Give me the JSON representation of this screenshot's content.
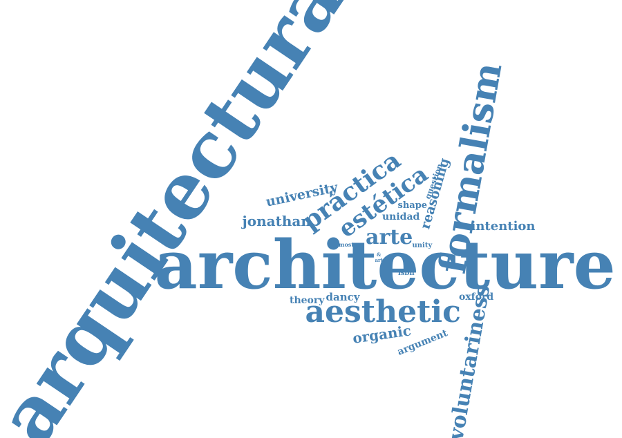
{
  "colors": {
    "text": "#4682b4",
    "background": "#ffffff"
  },
  "words": [
    "arquitectura",
    "architecture",
    "formalism",
    "voluntariness",
    "aesthetic",
    "práctica",
    "estética",
    "arte",
    "university",
    "jonathan",
    "reasoning",
    "intention",
    "unidad",
    "shape",
    "question",
    "unity",
    "most",
    "&",
    "art",
    "isbn",
    "theory",
    "dancy",
    "oxford",
    "organic",
    "argument"
  ]
}
